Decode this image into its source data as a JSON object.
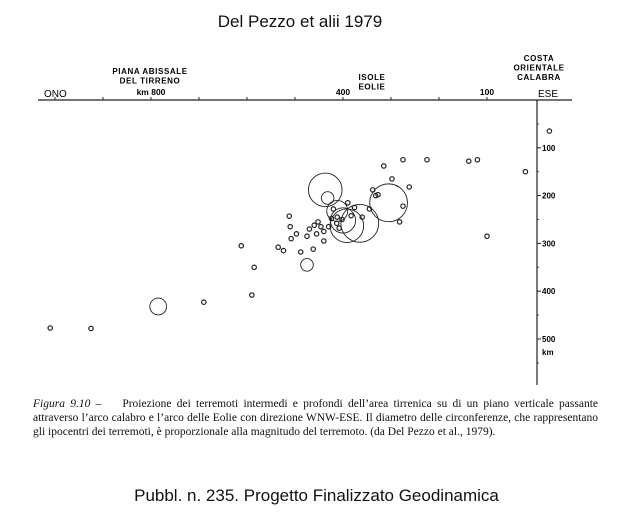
{
  "header": {
    "title": "Del Pezzo et alii 1979"
  },
  "footer": {
    "title": "Pubbl. n. 235. Progetto Finalizzato Geodinamica"
  },
  "chart_data": {
    "type": "scatter",
    "direction": {
      "left": "ONO",
      "right": "ESE"
    },
    "top_labels": [
      {
        "text": "PIANA ABISSALE",
        "x": 800
      },
      {
        "text": "DEL TIRRENO",
        "x": 800
      },
      {
        "text": "ISOLE",
        "x": 400
      },
      {
        "text": "EOLIE",
        "x": 400
      },
      {
        "text": "COSTA",
        "x": 0
      },
      {
        "text": "ORIENTALE",
        "x": 0
      },
      {
        "text": "CALABRA",
        "x": 0
      }
    ],
    "x_ticks": [
      {
        "value": 800,
        "label": "km 800"
      },
      {
        "value": 400,
        "label": "400"
      },
      {
        "value": 100,
        "label": "100"
      }
    ],
    "x_minor_ticks": [
      1000,
      900,
      800,
      700,
      600,
      500,
      400,
      300,
      200,
      100
    ],
    "y_ticks": [
      {
        "value": 100,
        "label": "100"
      },
      {
        "value": 200,
        "label": "200"
      },
      {
        "value": 300,
        "label": "300"
      },
      {
        "value": 400,
        "label": "400"
      },
      {
        "value": 500,
        "label": "500"
      }
    ],
    "y_unit": "km",
    "xlim": [
      1080,
      0
    ],
    "ylim": [
      0,
      520
    ],
    "points": [
      {
        "x": -30,
        "y": 65,
        "m": 2
      },
      {
        "x": 20,
        "y": 150,
        "m": 2
      },
      {
        "x": 100,
        "y": 285,
        "m": 2
      },
      {
        "x": 120,
        "y": 125,
        "m": 2
      },
      {
        "x": 138,
        "y": 128,
        "m": 2
      },
      {
        "x": 225,
        "y": 125,
        "m": 2
      },
      {
        "x": 262,
        "y": 182,
        "m": 2
      },
      {
        "x": 275,
        "y": 222,
        "m": 2
      },
      {
        "x": 282,
        "y": 255,
        "m": 2
      },
      {
        "x": 275,
        "y": 125,
        "m": 2
      },
      {
        "x": 315,
        "y": 138,
        "m": 2
      },
      {
        "x": 298,
        "y": 165,
        "m": 2
      },
      {
        "x": 338,
        "y": 188,
        "m": 2
      },
      {
        "x": 332,
        "y": 200,
        "m": 2
      },
      {
        "x": 305,
        "y": 215,
        "m": 9
      },
      {
        "x": 327,
        "y": 198,
        "m": 2
      },
      {
        "x": 345,
        "y": 228,
        "m": 2
      },
      {
        "x": 360,
        "y": 245,
        "m": 2
      },
      {
        "x": 365,
        "y": 258,
        "m": 9
      },
      {
        "x": 376,
        "y": 225,
        "m": 2
      },
      {
        "x": 383,
        "y": 242,
        "m": 2
      },
      {
        "x": 390,
        "y": 215,
        "m": 2
      },
      {
        "x": 402,
        "y": 250,
        "m": 2
      },
      {
        "x": 400,
        "y": 252,
        "m": 6
      },
      {
        "x": 392,
        "y": 263,
        "m": 8
      },
      {
        "x": 412,
        "y": 232,
        "m": 5
      },
      {
        "x": 413,
        "y": 258,
        "m": 2
      },
      {
        "x": 424,
        "y": 248,
        "m": 2
      },
      {
        "x": 430,
        "y": 265,
        "m": 2
      },
      {
        "x": 432,
        "y": 205,
        "m": 3
      },
      {
        "x": 437,
        "y": 188,
        "m": 8
      },
      {
        "x": 420,
        "y": 228,
        "m": 2
      },
      {
        "x": 412,
        "y": 245,
        "m": 2
      },
      {
        "x": 408,
        "y": 268,
        "m": 2
      },
      {
        "x": 440,
        "y": 275,
        "m": 2
      },
      {
        "x": 446,
        "y": 265,
        "m": 2
      },
      {
        "x": 440,
        "y": 295,
        "m": 2
      },
      {
        "x": 452,
        "y": 255,
        "m": 2
      },
      {
        "x": 455,
        "y": 280,
        "m": 2
      },
      {
        "x": 460,
        "y": 262,
        "m": 2
      },
      {
        "x": 462,
        "y": 312,
        "m": 2
      },
      {
        "x": 470,
        "y": 270,
        "m": 2
      },
      {
        "x": 475,
        "y": 285,
        "m": 2
      },
      {
        "x": 475,
        "y": 345,
        "m": 3
      },
      {
        "x": 488,
        "y": 318,
        "m": 2
      },
      {
        "x": 497,
        "y": 280,
        "m": 2
      },
      {
        "x": 508,
        "y": 290,
        "m": 2
      },
      {
        "x": 510,
        "y": 265,
        "m": 2
      },
      {
        "x": 512,
        "y": 243,
        "m": 2
      },
      {
        "x": 524,
        "y": 315,
        "m": 2
      },
      {
        "x": 535,
        "y": 308,
        "m": 2
      },
      {
        "x": 585,
        "y": 350,
        "m": 2
      },
      {
        "x": 612,
        "y": 305,
        "m": 2
      },
      {
        "x": 590,
        "y": 408,
        "m": 2
      },
      {
        "x": 690,
        "y": 423,
        "m": 2
      },
      {
        "x": 785,
        "y": 432,
        "m": 4
      },
      {
        "x": 925,
        "y": 478,
        "m": 2
      },
      {
        "x": 1010,
        "y": 477,
        "m": 2
      }
    ]
  },
  "caption": {
    "fig": "Figura 9.10 –",
    "text": "Proiezione dei terremoti intermedi e profondi dell’area tirrenica su di un piano verticale passante attraverso l’arco calabro e l’arco delle Eolie con direzione WNW-ESE. Il diametro delle circonferenze, che rappresentano gli ipocentri dei terremoti, è proporzionale alla magnitudo del terremoto. (da Del Pezzo et al., 1979)."
  }
}
